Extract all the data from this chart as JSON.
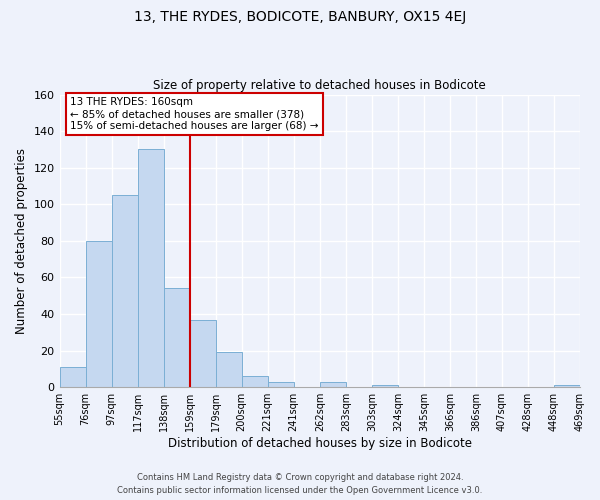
{
  "title": "13, THE RYDES, BODICOTE, BANBURY, OX15 4EJ",
  "subtitle": "Size of property relative to detached houses in Bodicote",
  "xlabel": "Distribution of detached houses by size in Bodicote",
  "ylabel": "Number of detached properties",
  "footer_line1": "Contains HM Land Registry data © Crown copyright and database right 2024.",
  "footer_line2": "Contains public sector information licensed under the Open Government Licence v3.0.",
  "bin_labels": [
    "55sqm",
    "76sqm",
    "97sqm",
    "117sqm",
    "138sqm",
    "159sqm",
    "179sqm",
    "200sqm",
    "221sqm",
    "241sqm",
    "262sqm",
    "283sqm",
    "303sqm",
    "324sqm",
    "345sqm",
    "366sqm",
    "386sqm",
    "407sqm",
    "428sqm",
    "448sqm",
    "469sqm"
  ],
  "bar_heights": [
    11,
    80,
    105,
    130,
    54,
    37,
    19,
    6,
    3,
    0,
    3,
    0,
    1,
    0,
    0,
    0,
    0,
    0,
    0,
    1
  ],
  "bar_color": "#c5d8f0",
  "bar_edge_color": "#7bafd4",
  "vline_color": "#cc0000",
  "vline_x_index": 5,
  "ylim": [
    0,
    160
  ],
  "yticks": [
    0,
    20,
    40,
    60,
    80,
    100,
    120,
    140,
    160
  ],
  "annotation_title": "13 THE RYDES: 160sqm",
  "annotation_line1": "← 85% of detached houses are smaller (378)",
  "annotation_line2": "15% of semi-detached houses are larger (68) →",
  "box_edge_color": "#cc0000",
  "background_color": "#eef2fb",
  "grid_color": "#d0d8ee",
  "title_fontsize": 10,
  "subtitle_fontsize": 8.5
}
